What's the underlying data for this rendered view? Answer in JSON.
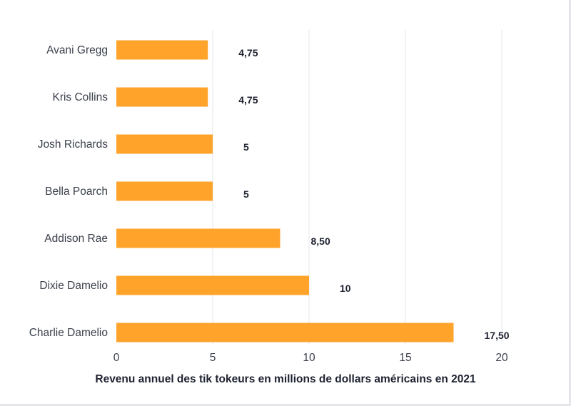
{
  "chart_data": {
    "type": "bar",
    "orientation": "horizontal",
    "categories": [
      "Avani Gregg",
      "Kris Collins",
      "Josh Richards",
      "Bella Poarch",
      "Addison Rae",
      "Dixie Damelio",
      "Charlie Damelio"
    ],
    "values": [
      4.75,
      4.75,
      5,
      5,
      8.5,
      10,
      17.5
    ],
    "data_labels": [
      "4,75",
      "4,75",
      "5",
      "5",
      "8,50",
      "10",
      "17,50"
    ],
    "xticks": [
      "0",
      "5",
      "10",
      "15",
      "20"
    ],
    "xlim": [
      0,
      20
    ],
    "title": "",
    "xlabel": "Revenu annuel des tik tokeurs en millions de dollars américains en 2021",
    "ylabel": "",
    "grid": "vertical",
    "legend": "none",
    "bar_color": "#ffa32b"
  }
}
